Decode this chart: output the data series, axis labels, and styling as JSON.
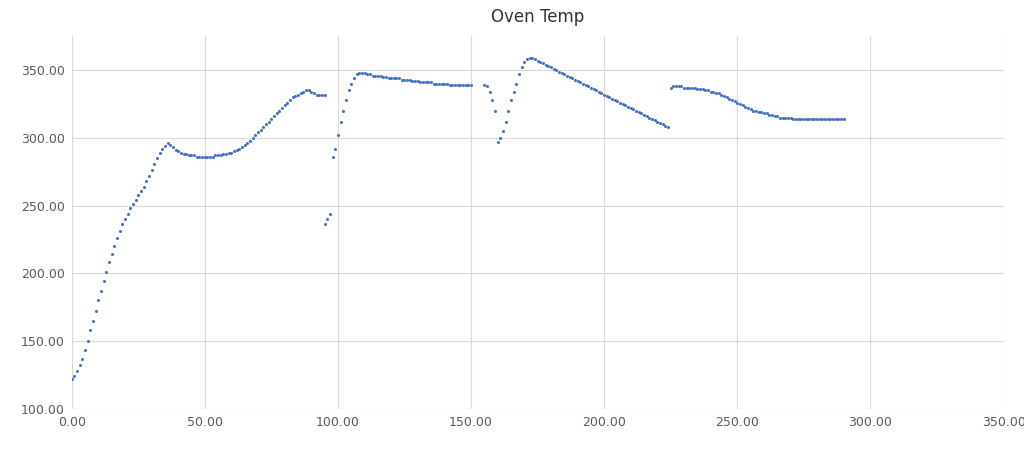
{
  "title": "Oven Temp",
  "title_fontsize": 12,
  "xlim": [
    0,
    350
  ],
  "ylim": [
    100,
    375
  ],
  "xticks": [
    0,
    50,
    100,
    150,
    200,
    250,
    300,
    350
  ],
  "yticks": [
    100,
    150,
    200,
    250,
    300,
    350
  ],
  "dot_color": "#4472C4",
  "background_color": "#ffffff",
  "grid_color": "#d9d9d9",
  "segments": [
    {
      "x": [
        0,
        1,
        2,
        3,
        4,
        5,
        6,
        7,
        8,
        9,
        10,
        11,
        12,
        13,
        14,
        15,
        16,
        17,
        18,
        19,
        20,
        21,
        22,
        23,
        24,
        25,
        26,
        27,
        28,
        29,
        30,
        31,
        32,
        33,
        34,
        35,
        36,
        37,
        38,
        39,
        40,
        41,
        42,
        43,
        44,
        45,
        46,
        47,
        48,
        49,
        50,
        51,
        52,
        53,
        54,
        55,
        56,
        57,
        58,
        59,
        60,
        61,
        62,
        63,
        64,
        65,
        66,
        67,
        68,
        69,
        70,
        71,
        72,
        73,
        74,
        75,
        76,
        77,
        78,
        79,
        80,
        81,
        82,
        83,
        84,
        85,
        86,
        87,
        88,
        89,
        90,
        91,
        92,
        93,
        94,
        95
      ],
      "y": [
        122,
        124,
        128,
        132,
        137,
        143,
        150,
        158,
        165,
        172,
        180,
        187,
        194,
        201,
        208,
        214,
        220,
        226,
        231,
        236,
        240,
        244,
        248,
        251,
        254,
        258,
        261,
        264,
        268,
        272,
        276,
        281,
        285,
        289,
        292,
        294,
        296,
        295,
        293,
        291,
        290,
        289,
        288,
        288,
        287,
        287,
        287,
        286,
        286,
        286,
        286,
        286,
        286,
        286,
        287,
        287,
        287,
        288,
        288,
        289,
        289,
        290,
        291,
        292,
        293,
        295,
        296,
        298,
        300,
        302,
        304,
        306,
        308,
        310,
        312,
        314,
        316,
        318,
        320,
        322,
        324,
        326,
        328,
        330,
        331,
        332,
        333,
        334,
        335,
        335,
        334,
        333,
        332,
        332,
        332,
        332
      ]
    },
    {
      "x": [
        95,
        96,
        97,
        98,
        99,
        100,
        101,
        102,
        103,
        104,
        105,
        106,
        107,
        108,
        109,
        110,
        111,
        112,
        113,
        114,
        115,
        116,
        117,
        118,
        119,
        120,
        121,
        122,
        123,
        124,
        125,
        126,
        127,
        128,
        129,
        130,
        131,
        132,
        133,
        134,
        135,
        136,
        137,
        138,
        139,
        140,
        141,
        142,
        143,
        144,
        145,
        146,
        147,
        148,
        149,
        150
      ],
      "y": [
        236,
        240,
        244,
        286,
        292,
        302,
        312,
        320,
        328,
        335,
        340,
        344,
        347,
        348,
        348,
        348,
        347,
        347,
        346,
        346,
        346,
        346,
        345,
        345,
        344,
        344,
        344,
        344,
        344,
        343,
        343,
        343,
        343,
        342,
        342,
        342,
        341,
        341,
        341,
        341,
        341,
        340,
        340,
        340,
        340,
        340,
        340,
        339,
        339,
        339,
        339,
        339,
        339,
        339,
        339,
        339
      ]
    },
    {
      "x": [
        155,
        156,
        157,
        158,
        159,
        160,
        161,
        162,
        163,
        164,
        165,
        166,
        167,
        168,
        169,
        170,
        171,
        172,
        173,
        174,
        175,
        176,
        177,
        178,
        179,
        180,
        181,
        182,
        183,
        184,
        185,
        186,
        187,
        188,
        189,
        190,
        191,
        192,
        193,
        194,
        195,
        196,
        197,
        198,
        199,
        200,
        201,
        202,
        203,
        204,
        205,
        206,
        207,
        208,
        209,
        210,
        211,
        212,
        213,
        214,
        215,
        216,
        217,
        218,
        219,
        220,
        221,
        222,
        223,
        224,
        225,
        226,
        227,
        228,
        229,
        230,
        231,
        232,
        233,
        234,
        235,
        236,
        237,
        238,
        239,
        240,
        241,
        242,
        243,
        244,
        245,
        246,
        247,
        248,
        249,
        250,
        251,
        252,
        253,
        254,
        255,
        256,
        257,
        258,
        259,
        260,
        261,
        262,
        263,
        264,
        265,
        266,
        267,
        268,
        269,
        270,
        271,
        272,
        273,
        274,
        275,
        276,
        277,
        278,
        279,
        280,
        281,
        282,
        283,
        284,
        285,
        286,
        287,
        288,
        289,
        290
      ],
      "y": [
        339,
        338,
        334,
        328,
        320,
        297,
        300,
        305,
        312,
        320,
        328,
        334,
        340,
        347,
        352,
        356,
        358,
        359,
        359,
        358,
        357,
        356,
        355,
        354,
        353,
        352,
        351,
        350,
        349,
        348,
        347,
        346,
        345,
        344,
        343,
        342,
        341,
        340,
        339,
        338,
        337,
        336,
        335,
        334,
        333,
        332,
        331,
        330,
        329,
        328,
        327,
        326,
        325,
        324,
        323,
        322,
        321,
        320,
        319,
        318,
        317,
        316,
        315,
        314,
        313,
        312,
        311,
        310,
        309,
        308,
        337,
        338,
        338,
        338,
        338,
        337,
        337,
        337,
        337,
        337,
        336,
        336,
        336,
        335,
        335,
        334,
        334,
        333,
        333,
        332,
        331,
        330,
        329,
        328,
        327,
        326,
        325,
        324,
        323,
        322,
        321,
        320,
        320,
        319,
        319,
        318,
        318,
        317,
        317,
        316,
        316,
        315,
        315,
        315,
        315,
        315,
        314,
        314,
        314,
        314,
        314,
        314,
        314,
        314,
        314,
        314,
        314,
        314,
        314,
        314,
        314,
        314,
        314,
        314,
        314,
        314
      ]
    }
  ]
}
